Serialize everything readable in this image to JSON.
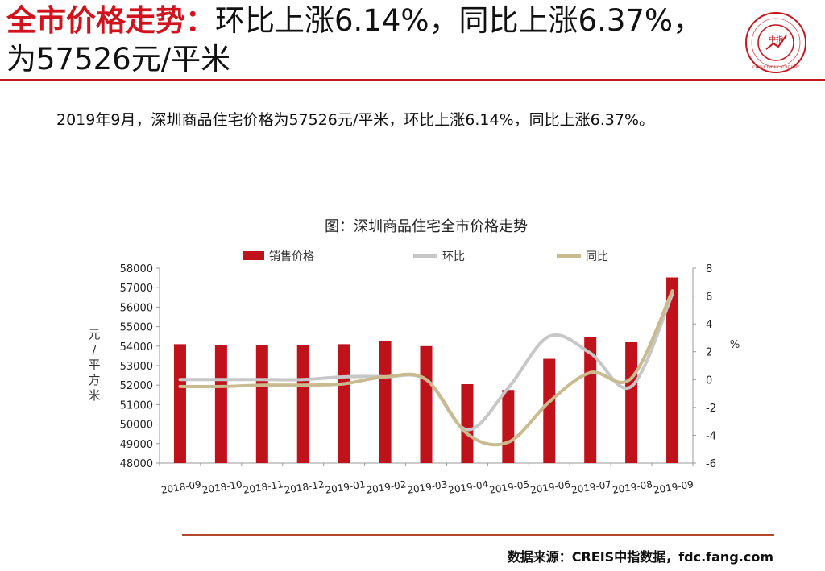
{
  "headline": {
    "lead": "全市价格走势：",
    "rest": "环比上涨6.14%，同比上涨6.37%，为57526元/平米"
  },
  "logo": {
    "icon": "china-index-academy-seal",
    "center_text": "中指",
    "ring_text": "CHINA INDEX ACADEMY"
  },
  "summary": "2019年9月，深圳商品住宅价格为57526元/平米，环比上涨6.14%，同比上涨6.37%。",
  "source": "数据来源：CREIS中指数据，fdc.fang.com",
  "colors": {
    "accent": "#c8161e",
    "bar": "#c0121a",
    "mom": "#c7c7c7",
    "yoy": "#c9bb8f"
  },
  "chart_data": {
    "type": "bar",
    "title": "图：深圳商品住宅全市价格走势",
    "categories": [
      "2018-09",
      "2018-10",
      "2018-11",
      "2018-12",
      "2019-01",
      "2019-02",
      "2019-03",
      "2019-04",
      "2019-05",
      "2019-06",
      "2019-07",
      "2019-08",
      "2019-09"
    ],
    "ylabel": "元/平方米",
    "y2label": "%",
    "ylim": [
      48000,
      58000
    ],
    "y2lim": [
      -6,
      8
    ],
    "yticks": [
      48000,
      49000,
      50000,
      51000,
      52000,
      53000,
      54000,
      55000,
      56000,
      57000,
      58000
    ],
    "y2ticks": [
      -6,
      -4,
      -2,
      0,
      2,
      4,
      6,
      8
    ],
    "legend_position": "top",
    "series": [
      {
        "name": "销售价格",
        "kind": "bar",
        "axis": "left",
        "values": [
          54100,
          54050,
          54050,
          54050,
          54100,
          54250,
          54000,
          52050,
          51750,
          53350,
          54450,
          54200,
          57526
        ]
      },
      {
        "name": "环比",
        "kind": "line",
        "axis": "right",
        "values": [
          0.0,
          0.0,
          0.0,
          0.0,
          0.2,
          0.2,
          0.0,
          -3.6,
          -0.6,
          3.1,
          1.9,
          -0.5,
          6.14
        ]
      },
      {
        "name": "同比",
        "kind": "line",
        "axis": "right",
        "values": [
          -0.5,
          -0.5,
          -0.4,
          -0.4,
          -0.3,
          0.2,
          0.0,
          -3.9,
          -4.5,
          -1.6,
          0.5,
          0.1,
          6.37
        ]
      }
    ]
  }
}
